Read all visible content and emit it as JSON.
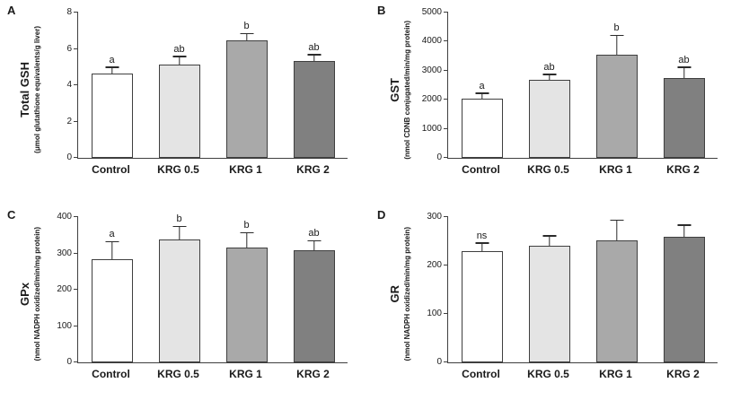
{
  "bar_fills": [
    "#ffffff",
    "#e4e4e4",
    "#a9a9a9",
    "#808080"
  ],
  "bar_border_color": "#3f3f3f",
  "chart_data": [
    {
      "panel": "A",
      "type": "bar",
      "title": "Total GSH",
      "ylabel_sub": "(μmol glutathione equivalents/g liver)",
      "categories": [
        "Control",
        "KRG 0.5",
        "KRG 1",
        "KRG 2"
      ],
      "values": [
        4.65,
        5.15,
        6.45,
        5.35
      ],
      "errors": [
        0.3,
        0.4,
        0.35,
        0.3
      ],
      "sig_labels": [
        "a",
        "ab",
        "b",
        "ab"
      ],
      "ylim": [
        0,
        8
      ],
      "yticks": [
        0,
        2,
        4,
        6,
        8
      ],
      "grid": false,
      "legend": "none"
    },
    {
      "panel": "B",
      "type": "bar",
      "title": "GST",
      "ylabel_sub": "(nmol CDNB conjugated/min/mg protein)",
      "categories": [
        "Control",
        "KRG 0.5",
        "KRG 1",
        "KRG 2"
      ],
      "values": [
        2050,
        2700,
        3550,
        2750
      ],
      "errors": [
        150,
        150,
        650,
        350
      ],
      "sig_labels": [
        "a",
        "ab",
        "b",
        "ab"
      ],
      "ylim": [
        0,
        5000
      ],
      "yticks": [
        0,
        1000,
        2000,
        3000,
        4000,
        5000
      ],
      "grid": false,
      "legend": "none"
    },
    {
      "panel": "C",
      "type": "bar",
      "title": "GPx",
      "ylabel_sub": "(nmol NADPH oxidized/min/mg protein)",
      "categories": [
        "Control",
        "KRG 0.5",
        "KRG 1",
        "KRG 2"
      ],
      "values": [
        283,
        338,
        315,
        308
      ],
      "errors": [
        48,
        35,
        40,
        25
      ],
      "sig_labels": [
        "a",
        "b",
        "b",
        "ab"
      ],
      "ylim": [
        0,
        400
      ],
      "yticks": [
        0,
        100,
        200,
        300,
        400
      ],
      "grid": false,
      "legend": "none"
    },
    {
      "panel": "D",
      "type": "bar",
      "title": "GR",
      "ylabel_sub": "(nmol NADPH oxidized/min/mg protein)",
      "categories": [
        "Control",
        "KRG 0.5",
        "KRG 1",
        "KRG 2"
      ],
      "values": [
        230,
        240,
        252,
        260
      ],
      "errors": [
        15,
        20,
        40,
        22
      ],
      "sig_labels": [
        "ns",
        "",
        "",
        ""
      ],
      "ylim": [
        0,
        300
      ],
      "yticks": [
        0,
        100,
        200,
        300
      ],
      "grid": false,
      "legend": "none"
    }
  ]
}
